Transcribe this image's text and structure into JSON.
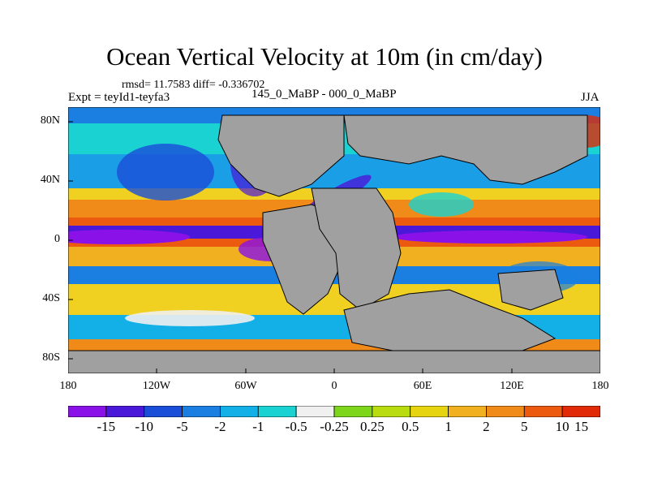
{
  "title": "Ocean Vertical Velocity at 10m (in cm/day)",
  "stats": "rmsd= 11.7583 diff= -0.336702",
  "expt": "Expt = teyId1-teyfa3",
  "comparison": "145_0_MaBP - 000_0_MaBP",
  "season": "JJA",
  "map": {
    "lon_range": [
      -180,
      180
    ],
    "lat_range": [
      -90,
      90
    ],
    "lat_ticks": [
      "80N",
      "40N",
      "0",
      "40S",
      "80S"
    ],
    "lon_ticks": [
      "180",
      "120W",
      "60W",
      "0",
      "60E",
      "120E",
      "180"
    ],
    "land_color": "#a0a0a0"
  },
  "colorbar": {
    "colors": [
      "#8a12e8",
      "#4a18d8",
      "#1a4ed8",
      "#1a7fe0",
      "#12b0e6",
      "#1ad2d2",
      "#f0f0f0",
      "#7ed61a",
      "#b8dc10",
      "#e6d410",
      "#f0b020",
      "#f08a18",
      "#ec5a10",
      "#e02a08"
    ],
    "labels": [
      "-15",
      "-10",
      "-5",
      "-2",
      "-1",
      "-0.5",
      "-0.25",
      "0.25",
      "0.5",
      "1",
      "2",
      "5",
      "10",
      "15"
    ]
  }
}
